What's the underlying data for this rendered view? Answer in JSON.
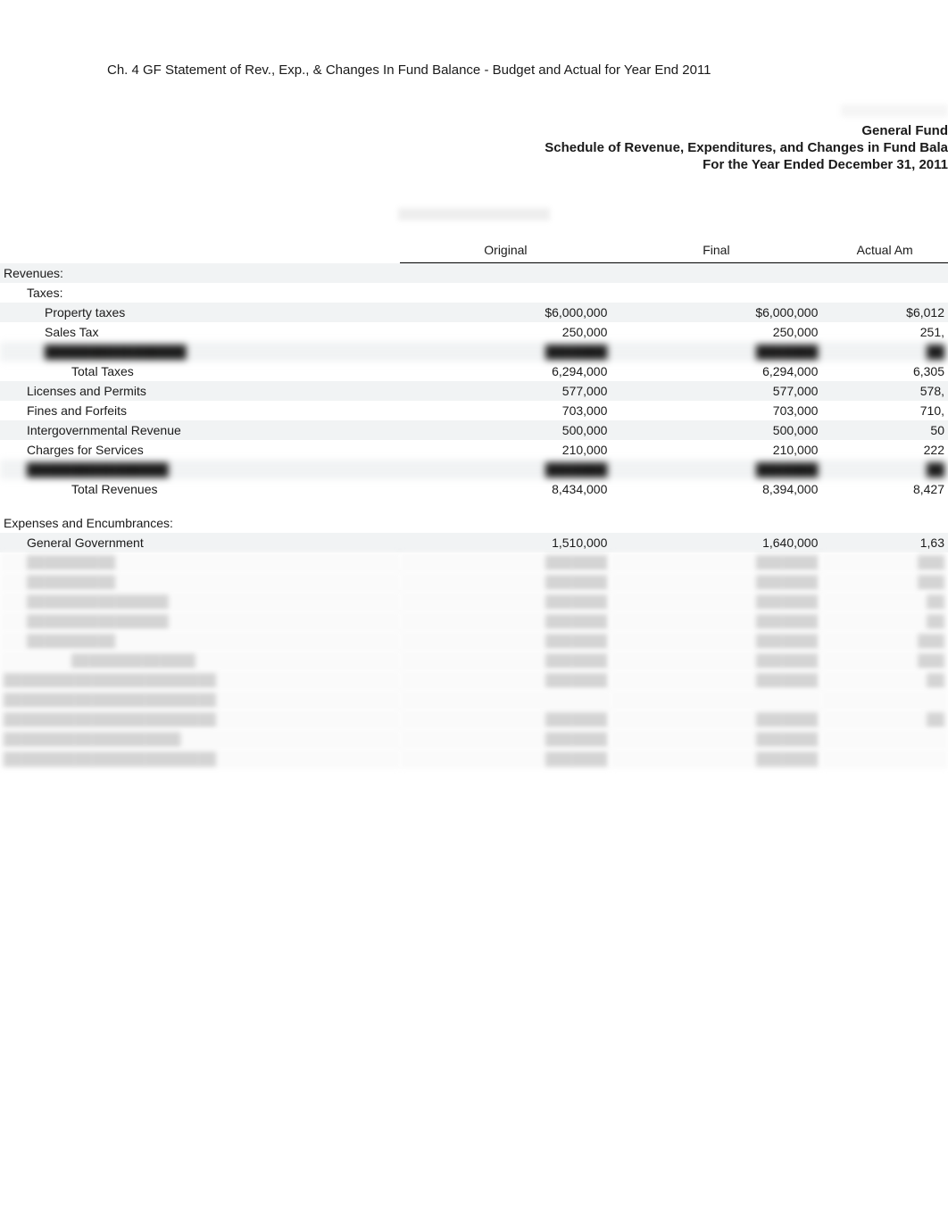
{
  "page_title": "Ch. 4 GF Statement of Rev., Exp., & Changes In Fund Balance  - Budget and Actual for Year End 2011",
  "header": {
    "fund_name": "General Fund",
    "subtitle1": "Schedule of Revenue, Expenditures, and Changes in Fund Bala",
    "subtitle2": "For the Year Ended December 31, 2011"
  },
  "columns": {
    "original": "Original",
    "final": "Final",
    "actual": "Actual Am"
  },
  "sections": {
    "revenues_label": "Revenues:",
    "taxes_label": "Taxes:",
    "expenses_label": "Expenses and Encumbrances:"
  },
  "rows": {
    "property_taxes": {
      "label": "Property taxes",
      "original": "$6,000,000",
      "final": "$6,000,000",
      "actual": "$6,012"
    },
    "sales_tax": {
      "label": "Sales Tax",
      "original": "250,000",
      "final": "250,000",
      "actual": "251,"
    },
    "total_taxes": {
      "label": "Total Taxes",
      "original": "6,294,000",
      "final": "6,294,000",
      "actual": "6,305"
    },
    "licenses_permits": {
      "label": "Licenses and Permits",
      "original": "577,000",
      "final": "577,000",
      "actual": "578,"
    },
    "fines_forfeits": {
      "label": "Fines and Forfeits",
      "original": "703,000",
      "final": "703,000",
      "actual": "710,"
    },
    "intergovernmental": {
      "label": "Intergovernmental Revenue",
      "original": "500,000",
      "final": "500,000",
      "actual": "50"
    },
    "charges_services": {
      "label": "Charges for Services",
      "original": "210,000",
      "final": "210,000",
      "actual": "222"
    },
    "total_revenues": {
      "label": "Total Revenues",
      "original": "8,434,000",
      "final": "8,394,000",
      "actual": "8,427"
    },
    "general_government": {
      "label": "General Government",
      "original": "1,510,000",
      "final": "1,640,000",
      "actual": "1,63"
    }
  },
  "colors": {
    "text": "#1a1a1a",
    "background": "#ffffff",
    "shaded_row": "#f1f3f4",
    "border": "#000000"
  },
  "typography": {
    "base_fontsize": 14,
    "title_fontsize": 15,
    "font_family": "Arial"
  }
}
